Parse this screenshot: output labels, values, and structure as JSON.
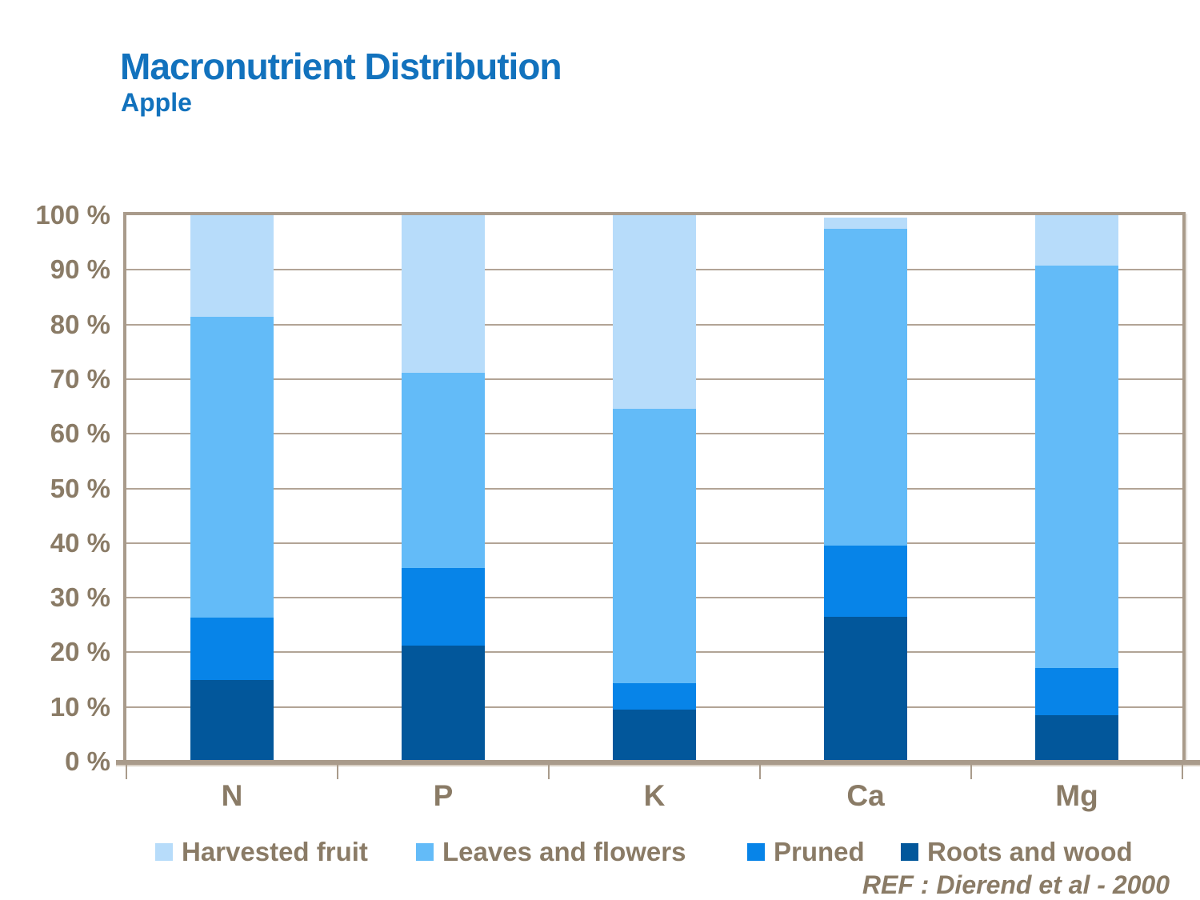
{
  "title": "Macronutrient Distribution",
  "subtitle": "Apple",
  "reference": "REF :  Dierend et al - 2000",
  "colors": {
    "title_blue": "#1272BD",
    "text_brown": "#8A7B66",
    "frame_tan": "#A99B8B",
    "gridline_tan": "#B2A496",
    "harvested_fruit": "#B7DCFA",
    "leaves_and_flowers": "#63BBF8",
    "pruned": "#0784E8",
    "roots_and_wood": "#02579B"
  },
  "chart_data": {
    "type": "bar",
    "stacked": true,
    "title": "Macronutrient Distribution",
    "subtitle": "Apple",
    "categories": [
      "N",
      "P",
      "K",
      "Ca",
      "Mg"
    ],
    "series": [
      {
        "name": "Roots and wood",
        "color": "#02579B",
        "values": [
          15.0,
          21.2,
          9.5,
          26.5,
          8.5
        ]
      },
      {
        "name": "Pruned",
        "color": "#0784E8",
        "values": [
          11.4,
          14.3,
          4.9,
          13.0,
          8.7
        ]
      },
      {
        "name": "Leaves and flowers",
        "color": "#63BBF8",
        "values": [
          55.0,
          35.7,
          50.2,
          58.0,
          73.6
        ]
      },
      {
        "name": "Harvested fruit",
        "color": "#B7DCFA",
        "values": [
          18.6,
          28.8,
          35.4,
          2.0,
          9.2
        ]
      }
    ],
    "y_ticks": [
      "100 %",
      "90 %",
      "80 %",
      "70 %",
      "60 %",
      "50 %",
      "40 %",
      "30 %",
      "20 %",
      "10 %",
      "0 %"
    ],
    "ylim": [
      0,
      100
    ],
    "grid": true,
    "legend_position": "bottom",
    "legend_order": [
      "Harvested fruit",
      "Leaves and flowers",
      "Pruned",
      "Roots and wood"
    ],
    "xlabel": "",
    "ylabel": ""
  }
}
